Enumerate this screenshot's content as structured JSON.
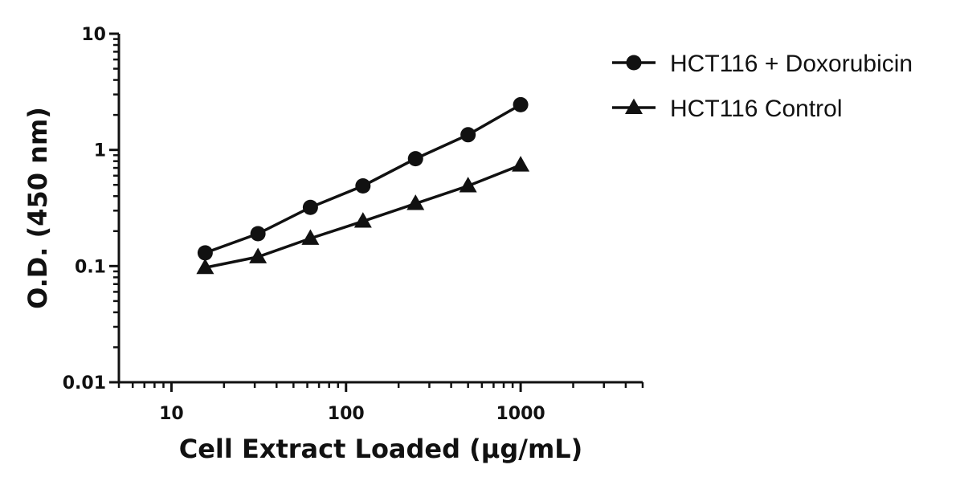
{
  "chart_data": {
    "type": "line",
    "title": "",
    "xlabel": "Cell Extract Loaded (μg/mL)",
    "ylabel": "O.D. (450 nm)",
    "x_scale": "log",
    "y_scale": "log",
    "xlim": [
      5,
      5000
    ],
    "ylim": [
      0.01,
      10
    ],
    "x_ticks": [
      10,
      100,
      1000
    ],
    "x_tick_labels": [
      "10",
      "100",
      "1000"
    ],
    "y_ticks": [
      0.01,
      0.1,
      1,
      10
    ],
    "y_tick_labels": [
      "0.01",
      "0.1",
      "1",
      "10"
    ],
    "grid": false,
    "legend_position": "top-right",
    "series": [
      {
        "name": "HCT116 + Doxorubicin",
        "marker": "circle",
        "color": "#111111",
        "x": [
          15.6,
          31.3,
          62.5,
          125,
          250,
          500,
          1000
        ],
        "values": [
          0.13,
          0.19,
          0.32,
          0.49,
          0.84,
          1.35,
          2.45
        ]
      },
      {
        "name": "HCT116 Control",
        "marker": "triangle",
        "color": "#111111",
        "x": [
          15.6,
          31.3,
          62.5,
          125,
          250,
          500,
          1000
        ],
        "values": [
          0.097,
          0.12,
          0.173,
          0.243,
          0.345,
          0.49,
          0.74
        ]
      }
    ]
  }
}
